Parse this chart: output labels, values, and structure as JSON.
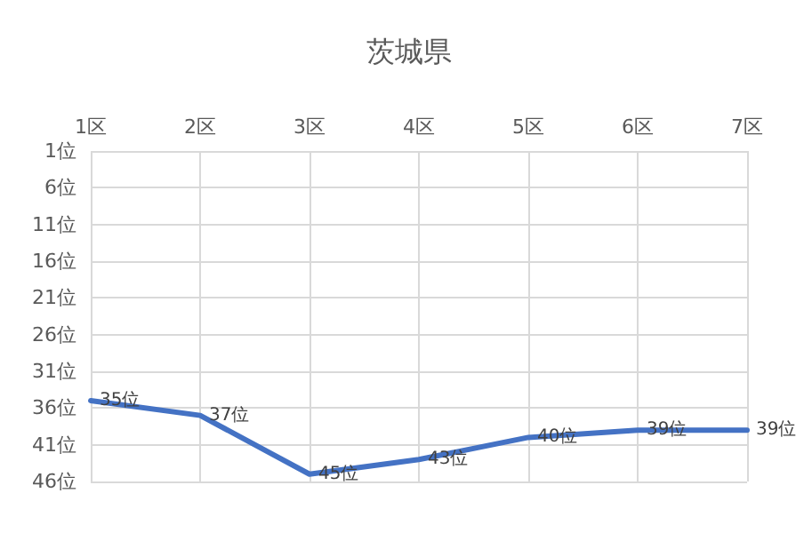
{
  "chart_data": {
    "type": "line",
    "title": "茨城県",
    "categories": [
      "1区",
      "2区",
      "3区",
      "4区",
      "5区",
      "6区",
      "7区"
    ],
    "series": [
      {
        "color": "#4472c4",
        "values": [
          35,
          37,
          45,
          43,
          40,
          39,
          39
        ],
        "value_labels": [
          "35位",
          "37位",
          "45位",
          "43位",
          "40位",
          "39位",
          "39位"
        ]
      }
    ],
    "ylim": [
      46,
      1
    ],
    "yticks": [
      {
        "value": 1,
        "label": "1位"
      },
      {
        "value": 6,
        "label": "6位"
      },
      {
        "value": 11,
        "label": "11位"
      },
      {
        "value": 16,
        "label": "16位"
      },
      {
        "value": 21,
        "label": "21位"
      },
      {
        "value": 26,
        "label": "26位"
      },
      {
        "value": 31,
        "label": "31位"
      },
      {
        "value": 36,
        "label": "36位"
      },
      {
        "value": 41,
        "label": "41位"
      },
      {
        "value": 46,
        "label": "46位"
      }
    ],
    "grid": true,
    "marker": "none",
    "line_style": "solid"
  }
}
